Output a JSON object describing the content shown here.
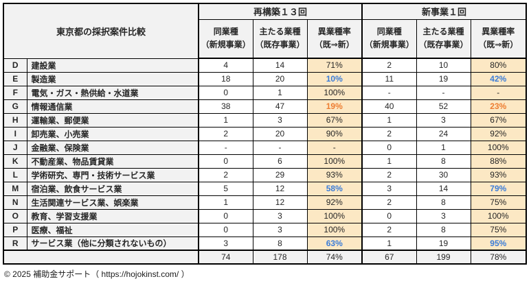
{
  "chart_data": {
    "type": "table",
    "title": "東京都の採択案件比較",
    "groups": [
      {
        "label": "再構築１３回",
        "total": {
          "same": "74",
          "main": "178",
          "rate": "74%"
        }
      },
      {
        "label": "新事業１回",
        "total": {
          "same": "67",
          "main": "199",
          "rate": "78%"
        }
      }
    ],
    "subcolumns": [
      {
        "line1": "同業種",
        "line2": "（新規事業）"
      },
      {
        "line1": "主たる業種",
        "line2": "（既存事業）"
      },
      {
        "line1": "異業種率",
        "line2": "（既⇒新）"
      }
    ],
    "rows": [
      {
        "code": "D",
        "name": "建設業",
        "saikochiku": {
          "same": "4",
          "main": "14",
          "rate": "71%",
          "rate_color": "black"
        },
        "shinjigyo": {
          "same": "2",
          "main": "10",
          "rate": "80%",
          "rate_color": "black"
        }
      },
      {
        "code": "E",
        "name": "製造業",
        "saikochiku": {
          "same": "18",
          "main": "20",
          "rate": "10%",
          "rate_color": "blue"
        },
        "shinjigyo": {
          "same": "11",
          "main": "19",
          "rate": "42%",
          "rate_color": "blue"
        }
      },
      {
        "code": "F",
        "name": "電気・ガス・熱供給・水道業",
        "saikochiku": {
          "same": "0",
          "main": "1",
          "rate": "100%",
          "rate_color": "black"
        },
        "shinjigyo": {
          "same": "-",
          "main": "-",
          "rate": "-",
          "rate_color": "black"
        }
      },
      {
        "code": "G",
        "name": "情報通信業",
        "saikochiku": {
          "same": "38",
          "main": "47",
          "rate": "19%",
          "rate_color": "orange"
        },
        "shinjigyo": {
          "same": "40",
          "main": "52",
          "rate": "23%",
          "rate_color": "orange"
        }
      },
      {
        "code": "H",
        "name": "運輸業、郵便業",
        "saikochiku": {
          "same": "1",
          "main": "3",
          "rate": "67%",
          "rate_color": "black"
        },
        "shinjigyo": {
          "same": "1",
          "main": "3",
          "rate": "67%",
          "rate_color": "black"
        }
      },
      {
        "code": "I",
        "name": "卸売業、小売業",
        "saikochiku": {
          "same": "2",
          "main": "20",
          "rate": "90%",
          "rate_color": "black"
        },
        "shinjigyo": {
          "same": "2",
          "main": "24",
          "rate": "92%",
          "rate_color": "black"
        }
      },
      {
        "code": "J",
        "name": "金融業、保険業",
        "saikochiku": {
          "same": "-",
          "main": "-",
          "rate": "-",
          "rate_color": "black"
        },
        "shinjigyo": {
          "same": "0",
          "main": "1",
          "rate": "100%",
          "rate_color": "black"
        }
      },
      {
        "code": "K",
        "name": "不動産業、物品賃貸業",
        "saikochiku": {
          "same": "0",
          "main": "6",
          "rate": "100%",
          "rate_color": "black"
        },
        "shinjigyo": {
          "same": "1",
          "main": "8",
          "rate": "88%",
          "rate_color": "black"
        }
      },
      {
        "code": "L",
        "name": "学術研究、専門・技術サービス業",
        "saikochiku": {
          "same": "2",
          "main": "29",
          "rate": "93%",
          "rate_color": "black"
        },
        "shinjigyo": {
          "same": "2",
          "main": "30",
          "rate": "93%",
          "rate_color": "black"
        }
      },
      {
        "code": "M",
        "name": "宿泊業、飲食サービス業",
        "saikochiku": {
          "same": "5",
          "main": "12",
          "rate": "58%",
          "rate_color": "blue"
        },
        "shinjigyo": {
          "same": "3",
          "main": "14",
          "rate": "79%",
          "rate_color": "blue"
        }
      },
      {
        "code": "N",
        "name": "生活関連サービス業、娯楽業",
        "saikochiku": {
          "same": "1",
          "main": "12",
          "rate": "92%",
          "rate_color": "black"
        },
        "shinjigyo": {
          "same": "2",
          "main": "8",
          "rate": "75%",
          "rate_color": "black"
        }
      },
      {
        "code": "O",
        "name": "教育、学習支援業",
        "saikochiku": {
          "same": "0",
          "main": "3",
          "rate": "100%",
          "rate_color": "black"
        },
        "shinjigyo": {
          "same": "0",
          "main": "3",
          "rate": "100%",
          "rate_color": "black"
        }
      },
      {
        "code": "P",
        "name": "医療、福祉",
        "saikochiku": {
          "same": "0",
          "main": "3",
          "rate": "100%",
          "rate_color": "black"
        },
        "shinjigyo": {
          "same": "2",
          "main": "8",
          "rate": "75%",
          "rate_color": "black"
        }
      },
      {
        "code": "R",
        "name": "サービス業（他に分類されないもの）",
        "saikochiku": {
          "same": "3",
          "main": "8",
          "rate": "63%",
          "rate_color": "blue"
        },
        "shinjigyo": {
          "same": "1",
          "main": "19",
          "rate": "95%",
          "rate_color": "blue"
        }
      }
    ]
  },
  "footer": {
    "copyright": "© 2025 補助金サポート（ https://hojokinst.com/ ）"
  },
  "colors": {
    "header_bg": "#F2F2F2",
    "rate_bg": "#FCE8C4",
    "rate_blue": "#3B7DD8",
    "rate_orange": "#ED7D31",
    "border": "#000000",
    "text": "#262626"
  }
}
